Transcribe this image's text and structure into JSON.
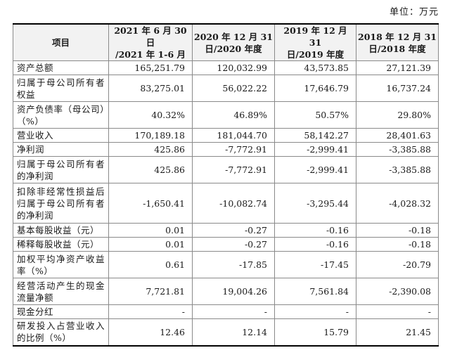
{
  "unit_label": "单位：万元",
  "headers": {
    "item": "项目",
    "c1_line1": "2021 年 6 月 30 日",
    "c1_line2": "/2021 年 1-6 月",
    "c2_line1": "2020 年 12 月 31",
    "c2_line2": "日/2020 年度",
    "c3_line1": "2019 年 12 月 31",
    "c3_line2": "日/2019 年度",
    "c4_line1": "2018 年 12 月 31",
    "c4_line2": "日/2018 年度"
  },
  "rows": [
    {
      "label": "资产总额",
      "v1": "165,251.79",
      "v2": "120,032.99",
      "v3": "43,573.85",
      "v4": "27,121.39"
    },
    {
      "label": "归属于母公司所有者权益",
      "v1": "83,275.01",
      "v2": "56,022.22",
      "v3": "17,646.79",
      "v4": "16,737.24"
    },
    {
      "label": "资产负债率（母公司）（%）",
      "v1": "40.32%",
      "v2": "46.89%",
      "v3": "50.57%",
      "v4": "29.80%"
    },
    {
      "label": "营业收入",
      "v1": "170,189.18",
      "v2": "181,044.70",
      "v3": "58,142.27",
      "v4": "28,401.63"
    },
    {
      "label": "净利润",
      "v1": "425.86",
      "v2": "-7,772.91",
      "v3": "-2,999.41",
      "v4": "-3,385.88"
    },
    {
      "label": "归属于母公司所有者的净利润",
      "v1": "425.86",
      "v2": "-7,772.91",
      "v3": "-2,999.41",
      "v4": "-3,385.88"
    },
    {
      "label": "扣除非经常性损益后归属于母公司所有者的净利润",
      "v1": "-1,650.41",
      "v2": "-10,082.74",
      "v3": "-3,295.44",
      "v4": "-4,028.32"
    },
    {
      "label": "基本每股收益（元）",
      "v1": "0.01",
      "v2": "-0.27",
      "v3": "-0.16",
      "v4": "-0.18"
    },
    {
      "label": "稀释每股收益（元）",
      "v1": "0.01",
      "v2": "-0.27",
      "v3": "-0.16",
      "v4": "-0.18"
    },
    {
      "label": "加权平均净资产收益率（%）",
      "v1": "0.61",
      "v2": "-17.85",
      "v3": "-17.45",
      "v4": "-20.79"
    },
    {
      "label": "经营活动产生的现金流量净额",
      "v1": "7,721.81",
      "v2": "19,004.26",
      "v3": "7,561.84",
      "v4": "-2,390.08"
    },
    {
      "label": "现金分红",
      "v1": "-",
      "v2": "-",
      "v3": "-",
      "v4": "-"
    },
    {
      "label": "研发投入占营业收入的比例（%）",
      "v1": "12.46",
      "v2": "12.14",
      "v3": "15.79",
      "v4": "21.45"
    }
  ]
}
